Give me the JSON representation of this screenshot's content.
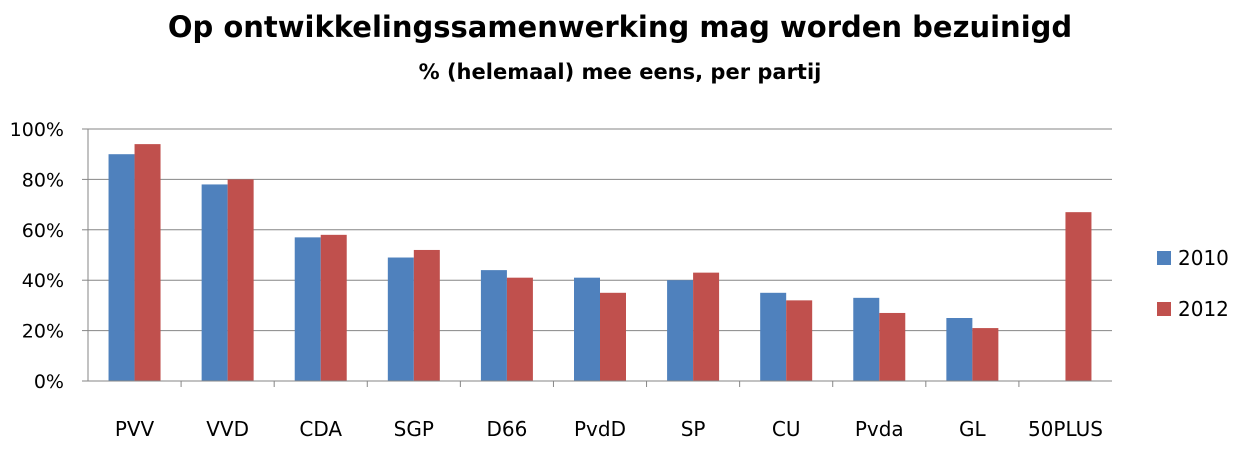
{
  "chart_data": {
    "type": "bar",
    "title": "Op ontwikkelingssamenwerking mag worden bezuinigd",
    "subtitle": "% (helemaal) mee eens, per partij",
    "categories": [
      "PVV",
      "VVD",
      "CDA",
      "SGP",
      "D66",
      "PvdD",
      "SP",
      "CU",
      "Pvda",
      "GL",
      "50PLUS"
    ],
    "series": [
      {
        "name": "2010",
        "color": "#4F81BD",
        "values": [
          90,
          78,
          57,
          49,
          44,
          41,
          40,
          35,
          33,
          25,
          null
        ]
      },
      {
        "name": "2012",
        "color": "#C0504D",
        "values": [
          94,
          80,
          58,
          52,
          41,
          35,
          43,
          32,
          27,
          21,
          67
        ]
      }
    ],
    "ylim": [
      0,
      100
    ],
    "yticks": [
      "0%",
      "20%",
      "40%",
      "60%",
      "80%",
      "100%"
    ],
    "grid": true,
    "legend_position": "right"
  }
}
